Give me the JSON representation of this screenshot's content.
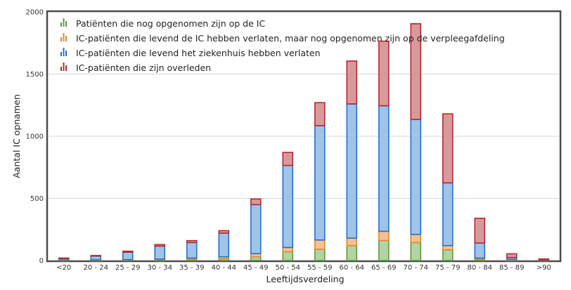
{
  "chart_data": {
    "type": "bar",
    "stacked": true,
    "categories": [
      "<20",
      "20 - 24",
      "25 - 29",
      "30 - 34",
      "35 - 39",
      "40 - 44",
      "45 - 49",
      "50 - 54",
      "55 - 59",
      "60 - 64",
      "65 - 69",
      "70 - 74",
      "75 - 79",
      "80 - 84",
      "85 - 89",
      ">90"
    ],
    "series": [
      {
        "name": "Patiënten die nog opgenomen zijn op de IC",
        "fill": "#b4d3a5",
        "stroke": "#5a9a3e",
        "values": [
          2,
          3,
          4,
          6,
          10,
          15,
          30,
          70,
          90,
          120,
          160,
          145,
          85,
          10,
          4,
          2
        ]
      },
      {
        "name": "IC-patiënten die levend de IC hebben verlaten, maar nog opgenomen zijn op de verpleegafdeling",
        "fill": "#f4c193",
        "stroke": "#e08a2e",
        "values": [
          2,
          3,
          3,
          5,
          10,
          15,
          25,
          35,
          75,
          60,
          75,
          65,
          35,
          10,
          5,
          1
        ]
      },
      {
        "name": "IC-patiënten die levend het ziekenhuis hebben verlaten",
        "fill": "#9ec4ea",
        "stroke": "#2a6fc9",
        "values": [
          12,
          30,
          60,
          105,
          125,
          190,
          395,
          660,
          920,
          1080,
          1010,
          925,
          505,
          120,
          15,
          2
        ]
      },
      {
        "name": "IC-patiënten die zijn overleden",
        "fill": "#d9999c",
        "stroke": "#b22a30",
        "values": [
          4,
          4,
          8,
          12,
          15,
          20,
          45,
          105,
          185,
          345,
          520,
          770,
          555,
          200,
          30,
          7
        ]
      }
    ],
    "xlabel": "Leeftijdsverdeling",
    "ylabel": "Aantal IC opnamen",
    "ylim": [
      0,
      2000
    ],
    "yticks": [
      "0",
      "500",
      "1000",
      "1500",
      "2000"
    ],
    "grid": true,
    "legend": "top-left"
  }
}
